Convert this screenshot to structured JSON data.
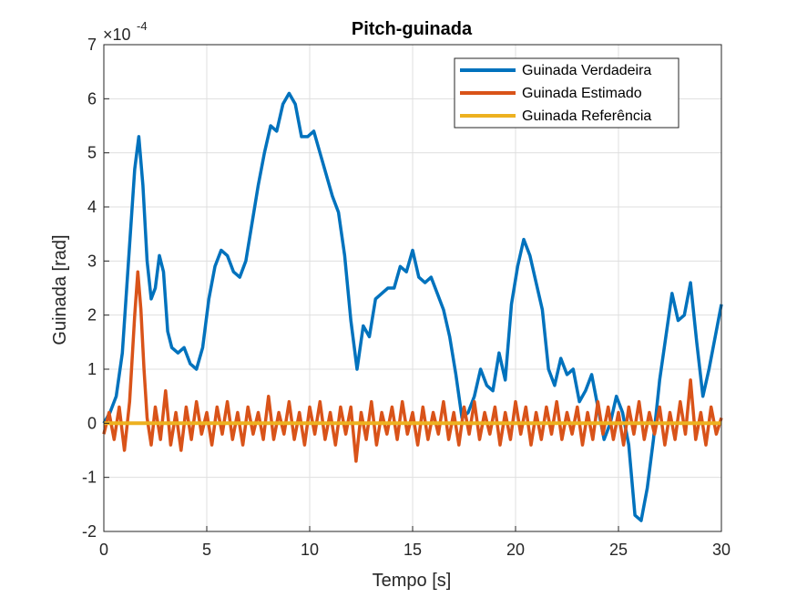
{
  "chart_data": {
    "type": "line",
    "title": "Pitch-guinada",
    "xlabel": "Tempo [s]",
    "ylabel": "Guinada [rad]",
    "y_exponent_label": "×10",
    "y_exponent_power": "-4",
    "xlim": [
      0,
      30
    ],
    "ylim": [
      -2,
      7
    ],
    "xticks": [
      0,
      5,
      10,
      15,
      20,
      25,
      30
    ],
    "yticks": [
      -2,
      -1,
      0,
      1,
      2,
      3,
      4,
      5,
      6,
      7
    ],
    "grid": true,
    "legend_position": "top-right",
    "series": [
      {
        "name": "Guinada Verdadeira",
        "color": "#0072BD",
        "x": [
          0,
          0.3,
          0.6,
          0.9,
          1.2,
          1.5,
          1.7,
          1.9,
          2.1,
          2.3,
          2.5,
          2.7,
          2.9,
          3.1,
          3.3,
          3.6,
          3.9,
          4.2,
          4.5,
          4.8,
          5.1,
          5.4,
          5.7,
          6.0,
          6.3,
          6.6,
          6.9,
          7.2,
          7.5,
          7.8,
          8.1,
          8.4,
          8.7,
          9.0,
          9.3,
          9.6,
          9.9,
          10.2,
          10.5,
          10.8,
          11.1,
          11.4,
          11.7,
          12.0,
          12.3,
          12.6,
          12.9,
          13.2,
          13.5,
          13.8,
          14.1,
          14.4,
          14.7,
          15.0,
          15.3,
          15.6,
          15.9,
          16.2,
          16.5,
          16.8,
          17.1,
          17.4,
          17.7,
          18.0,
          18.3,
          18.6,
          18.9,
          19.2,
          19.5,
          19.8,
          20.1,
          20.4,
          20.7,
          21.0,
          21.3,
          21.6,
          21.9,
          22.2,
          22.5,
          22.8,
          23.1,
          23.4,
          23.7,
          24.0,
          24.3,
          24.6,
          24.9,
          25.2,
          25.5,
          25.8,
          26.1,
          26.4,
          26.7,
          27.0,
          27.3,
          27.6,
          27.9,
          28.2,
          28.5,
          28.8,
          29.1,
          29.4,
          29.7,
          30.0
        ],
        "values": [
          0.0,
          0.2,
          0.5,
          1.3,
          3.0,
          4.7,
          5.3,
          4.4,
          3.0,
          2.3,
          2.5,
          3.1,
          2.8,
          1.7,
          1.4,
          1.3,
          1.4,
          1.1,
          1.0,
          1.4,
          2.3,
          2.9,
          3.2,
          3.1,
          2.8,
          2.7,
          3.0,
          3.7,
          4.4,
          5.0,
          5.5,
          5.4,
          5.9,
          6.1,
          5.9,
          5.3,
          5.3,
          5.4,
          5.0,
          4.6,
          4.2,
          3.9,
          3.1,
          1.9,
          1.0,
          1.8,
          1.6,
          2.3,
          2.4,
          2.5,
          2.5,
          2.9,
          2.8,
          3.2,
          2.7,
          2.6,
          2.7,
          2.4,
          2.1,
          1.6,
          0.9,
          0.1,
          0.2,
          0.5,
          1.0,
          0.7,
          0.6,
          1.3,
          0.8,
          2.2,
          2.9,
          3.4,
          3.1,
          2.6,
          2.1,
          1.0,
          0.7,
          1.2,
          0.9,
          1.0,
          0.4,
          0.6,
          0.9,
          0.3,
          -0.3,
          0.0,
          0.5,
          0.2,
          -0.4,
          -1.7,
          -1.8,
          -1.2,
          -0.3,
          0.8,
          1.6,
          2.4,
          1.9,
          2.0,
          2.6,
          1.5,
          0.5,
          1.0,
          1.6,
          2.2
        ]
      },
      {
        "name": "Guinada Estimado",
        "color": "#D95319",
        "x": [
          0,
          0.25,
          0.5,
          0.75,
          1.0,
          1.25,
          1.5,
          1.65,
          1.8,
          1.95,
          2.1,
          2.3,
          2.5,
          2.75,
          3.0,
          3.25,
          3.5,
          3.75,
          4.0,
          4.25,
          4.5,
          4.75,
          5.0,
          5.25,
          5.5,
          5.75,
          6.0,
          6.25,
          6.5,
          6.75,
          7.0,
          7.25,
          7.5,
          7.75,
          8.0,
          8.25,
          8.5,
          8.75,
          9.0,
          9.25,
          9.5,
          9.75,
          10.0,
          10.25,
          10.5,
          10.75,
          11.0,
          11.25,
          11.5,
          11.75,
          12.0,
          12.25,
          12.5,
          12.75,
          13.0,
          13.25,
          13.5,
          13.75,
          14.0,
          14.25,
          14.5,
          14.75,
          15.0,
          15.25,
          15.5,
          15.75,
          16.0,
          16.25,
          16.5,
          16.75,
          17.0,
          17.25,
          17.5,
          17.75,
          18.0,
          18.25,
          18.5,
          18.75,
          19.0,
          19.25,
          19.5,
          19.75,
          20.0,
          20.25,
          20.5,
          20.75,
          21.0,
          21.25,
          21.5,
          21.75,
          22.0,
          22.25,
          22.5,
          22.75,
          23.0,
          23.25,
          23.5,
          23.75,
          24.0,
          24.25,
          24.5,
          24.75,
          25.0,
          25.25,
          25.5,
          25.75,
          26.0,
          26.25,
          26.5,
          26.75,
          27.0,
          27.25,
          27.5,
          27.75,
          28.0,
          28.25,
          28.5,
          28.75,
          29.0,
          29.25,
          29.5,
          29.75,
          30.0
        ],
        "values": [
          -0.2,
          0.2,
          -0.3,
          0.3,
          -0.5,
          0.4,
          2.0,
          2.8,
          2.1,
          1.0,
          0.1,
          -0.4,
          0.3,
          -0.3,
          0.6,
          -0.4,
          0.2,
          -0.5,
          0.3,
          -0.3,
          0.4,
          -0.2,
          0.2,
          -0.4,
          0.3,
          -0.2,
          0.4,
          -0.3,
          0.2,
          -0.4,
          0.3,
          -0.2,
          0.2,
          -0.3,
          0.5,
          -0.3,
          0.2,
          -0.2,
          0.4,
          -0.3,
          0.2,
          -0.4,
          0.3,
          -0.2,
          0.4,
          -0.3,
          0.2,
          -0.4,
          0.3,
          -0.2,
          0.3,
          -0.7,
          0.2,
          -0.3,
          0.4,
          -0.4,
          0.2,
          -0.2,
          0.3,
          -0.3,
          0.4,
          -0.2,
          0.2,
          -0.4,
          0.3,
          -0.3,
          0.2,
          -0.2,
          0.4,
          -0.3,
          0.2,
          -0.4,
          0.3,
          -0.2,
          0.4,
          -0.3,
          0.2,
          -0.2,
          0.3,
          -0.4,
          0.2,
          -0.3,
          0.4,
          -0.2,
          0.3,
          -0.4,
          0.2,
          -0.3,
          0.3,
          -0.2,
          0.4,
          -0.3,
          0.2,
          -0.2,
          0.3,
          -0.4,
          0.2,
          -0.3,
          0.4,
          -0.2,
          0.3,
          -0.3,
          0.2,
          -0.4,
          0.3,
          -0.2,
          0.4,
          -0.3,
          0.2,
          -0.2,
          0.3,
          -0.4,
          0.2,
          -0.3,
          0.4,
          -0.2,
          0.8,
          -0.3,
          0.2,
          -0.4,
          0.3,
          -0.2,
          0.1
        ]
      },
      {
        "name": "Guinada Referência",
        "color": "#EDB120",
        "x": [
          0,
          30
        ],
        "values": [
          0,
          0
        ]
      }
    ]
  }
}
